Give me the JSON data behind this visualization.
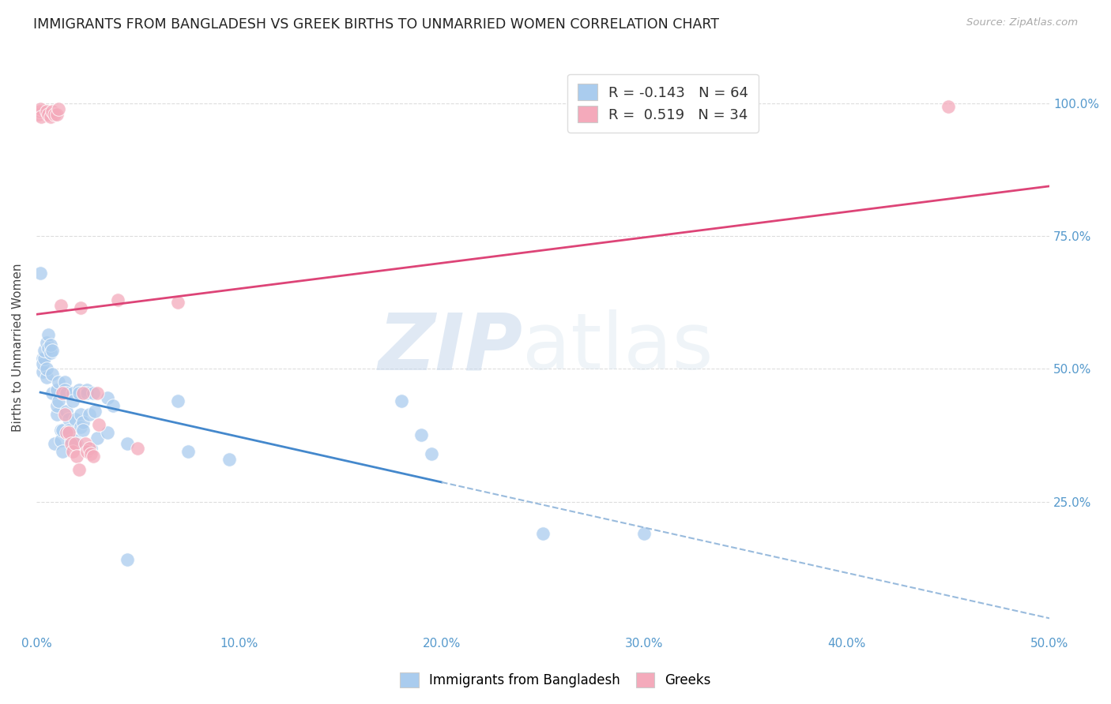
{
  "title": "IMMIGRANTS FROM BANGLADESH VS GREEK BIRTHS TO UNMARRIED WOMEN CORRELATION CHART",
  "source": "Source: ZipAtlas.com",
  "ylabel": "Births to Unmarried Women",
  "xlim": [
    0.0,
    50.0
  ],
  "ylim": [
    0.0,
    105.0
  ],
  "xtick_labels": [
    "0.0%",
    "",
    "",
    "",
    "",
    "",
    "",
    "",
    "",
    "",
    "10.0%",
    "",
    "",
    "",
    "",
    "",
    "",
    "",
    "",
    "",
    "20.0%",
    "",
    "",
    "",
    "",
    "",
    "",
    "",
    "",
    "",
    "30.0%",
    "",
    "",
    "",
    "",
    "",
    "",
    "",
    "",
    "",
    "40.0%",
    "",
    "",
    "",
    "",
    "",
    "",
    "",
    "",
    "",
    "50.0%"
  ],
  "xtick_values": [
    0,
    1,
    2,
    3,
    4,
    5,
    6,
    7,
    8,
    9,
    10,
    11,
    12,
    13,
    14,
    15,
    16,
    17,
    18,
    19,
    20,
    21,
    22,
    23,
    24,
    25,
    26,
    27,
    28,
    29,
    30,
    31,
    32,
    33,
    34,
    35,
    36,
    37,
    38,
    39,
    40,
    41,
    42,
    43,
    44,
    45,
    46,
    47,
    48,
    49,
    50
  ],
  "xtick_major": [
    0,
    10,
    20,
    30,
    40,
    50
  ],
  "xtick_major_labels": [
    "0.0%",
    "10.0%",
    "20.0%",
    "30.0%",
    "40.0%",
    "50.0%"
  ],
  "ytick_labels": [
    "25.0%",
    "50.0%",
    "75.0%",
    "100.0%"
  ],
  "ytick_values": [
    25,
    50,
    75,
    100
  ],
  "blue_color": "#aaccee",
  "pink_color": "#f4aabb",
  "blue_line_color": "#4488cc",
  "pink_line_color": "#dd4477",
  "dashed_line_color": "#99bbdd",
  "watermark_zip": "ZIP",
  "watermark_atlas": "atlas",
  "legend1_label": "Immigrants from Bangladesh",
  "legend2_label": "Greeks",
  "blue_solid_end": 20.0,
  "blue_points": [
    [
      0.2,
      68
    ],
    [
      0.3,
      49.5
    ],
    [
      0.3,
      52
    ],
    [
      0.3,
      51
    ],
    [
      0.4,
      52
    ],
    [
      0.4,
      53.5
    ],
    [
      0.5,
      55
    ],
    [
      0.5,
      48.5
    ],
    [
      0.5,
      50
    ],
    [
      0.6,
      56.5
    ],
    [
      0.6,
      54
    ],
    [
      0.7,
      53
    ],
    [
      0.7,
      54.5
    ],
    [
      0.8,
      53.5
    ],
    [
      0.8,
      49
    ],
    [
      0.8,
      45.5
    ],
    [
      0.9,
      36
    ],
    [
      1.0,
      41.5
    ],
    [
      1.0,
      43
    ],
    [
      1.0,
      46
    ],
    [
      1.1,
      47.5
    ],
    [
      1.1,
      44
    ],
    [
      1.2,
      38.5
    ],
    [
      1.2,
      36.5
    ],
    [
      1.3,
      34.5
    ],
    [
      1.3,
      38.5
    ],
    [
      1.4,
      47.5
    ],
    [
      1.4,
      46
    ],
    [
      1.5,
      45.5
    ],
    [
      1.5,
      42
    ],
    [
      1.6,
      40.5
    ],
    [
      1.6,
      38.5
    ],
    [
      1.7,
      36.5
    ],
    [
      1.8,
      45.5
    ],
    [
      1.8,
      44
    ],
    [
      1.9,
      40.5
    ],
    [
      1.9,
      36.5
    ],
    [
      2.0,
      36
    ],
    [
      2.1,
      46
    ],
    [
      2.1,
      45.5
    ],
    [
      2.2,
      41.5
    ],
    [
      2.2,
      39
    ],
    [
      2.3,
      40
    ],
    [
      2.3,
      38.5
    ],
    [
      2.5,
      46
    ],
    [
      2.5,
      45.5
    ],
    [
      2.6,
      41.5
    ],
    [
      2.7,
      35
    ],
    [
      2.8,
      45.5
    ],
    [
      2.9,
      42
    ],
    [
      3.0,
      37
    ],
    [
      3.5,
      44.5
    ],
    [
      3.5,
      38
    ],
    [
      3.8,
      43
    ],
    [
      4.5,
      14
    ],
    [
      4.5,
      36
    ],
    [
      7.0,
      44
    ],
    [
      7.5,
      34.5
    ],
    [
      9.5,
      33
    ],
    [
      18.0,
      44
    ],
    [
      19.0,
      37.5
    ],
    [
      19.5,
      34
    ],
    [
      25.0,
      19
    ],
    [
      30.0,
      19
    ]
  ],
  "pink_points": [
    [
      0.1,
      98
    ],
    [
      0.15,
      98.5
    ],
    [
      0.2,
      99
    ],
    [
      0.25,
      97.5
    ],
    [
      0.5,
      98.5
    ],
    [
      0.6,
      98
    ],
    [
      0.7,
      97.5
    ],
    [
      0.8,
      98.5
    ],
    [
      0.9,
      98
    ],
    [
      1.0,
      98
    ],
    [
      1.1,
      99
    ],
    [
      1.2,
      62
    ],
    [
      1.3,
      45.5
    ],
    [
      1.4,
      41.5
    ],
    [
      1.5,
      38
    ],
    [
      1.6,
      38
    ],
    [
      1.7,
      36
    ],
    [
      1.8,
      34.5
    ],
    [
      1.9,
      36
    ],
    [
      2.0,
      33.5
    ],
    [
      2.1,
      31
    ],
    [
      2.2,
      61.5
    ],
    [
      2.3,
      45.5
    ],
    [
      2.4,
      36
    ],
    [
      2.5,
      34.5
    ],
    [
      2.6,
      35
    ],
    [
      2.7,
      34
    ],
    [
      2.8,
      33.5
    ],
    [
      3.0,
      45.5
    ],
    [
      3.1,
      39.5
    ],
    [
      4.0,
      63
    ],
    [
      5.0,
      35
    ],
    [
      7.0,
      62.5
    ],
    [
      45.0,
      99.5
    ]
  ]
}
